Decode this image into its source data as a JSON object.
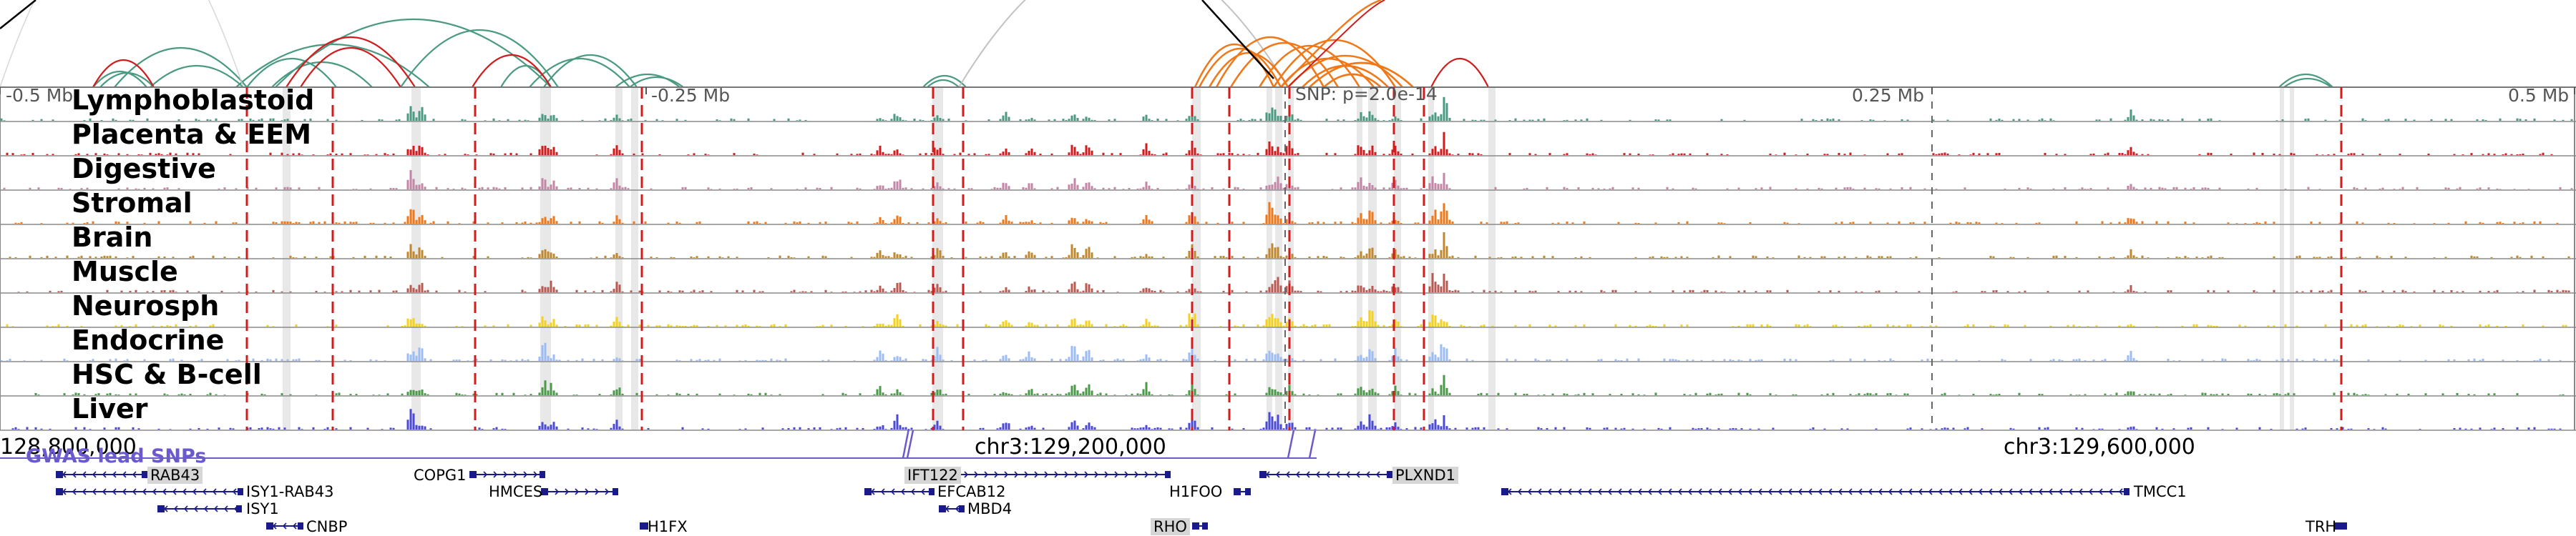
{
  "ruler": {
    "left_label": "-0.5 Mb",
    "mid_left_label": "-0.25 Mb",
    "snp_label": "SNP: p=2.0e-14",
    "mid_right_label": "0.25 Mb",
    "right_label": "0.5 Mb"
  },
  "tracks": [
    {
      "label": "Lymphoblastoid",
      "color": "#4a9a82"
    },
    {
      "label": "Placenta & EEM",
      "color": "#d01c1c"
    },
    {
      "label": "Digestive",
      "color": "#c486a6"
    },
    {
      "label": "Stromal",
      "color": "#f07818"
    },
    {
      "label": "Brain",
      "color": "#c0882e"
    },
    {
      "label": "Muscle",
      "color": "#b85a52"
    },
    {
      "label": "Neurosph",
      "color": "#f4d21c"
    },
    {
      "label": "Endocrine",
      "color": "#9cbcf4"
    },
    {
      "label": "HSC & B-cell",
      "color": "#4a9a48"
    },
    {
      "label": "Liver",
      "color": "#4a4ad6"
    }
  ],
  "gwas": {
    "label": "GWAS lead SNPs",
    "color": "#6a5acd"
  },
  "coordinates": {
    "left": "128,800,000",
    "center": "chr3:129,200,000",
    "right": "chr3:129,600,000"
  },
  "genes": [
    {
      "name": "RAB43",
      "highlight": true
    },
    {
      "name": "ISY1-RAB43",
      "highlight": false
    },
    {
      "name": "ISY1",
      "highlight": false
    },
    {
      "name": "CNBP",
      "highlight": false
    },
    {
      "name": "COPG1",
      "highlight": false
    },
    {
      "name": "HMCES",
      "highlight": false
    },
    {
      "name": "H1FX",
      "highlight": false
    },
    {
      "name": "IFT122",
      "highlight": true
    },
    {
      "name": "EFCAB12",
      "highlight": false
    },
    {
      "name": "MBD4",
      "highlight": false
    },
    {
      "name": "H1FOO",
      "highlight": false
    },
    {
      "name": "RHO",
      "highlight": true
    },
    {
      "name": "PLXND1",
      "highlight": true
    },
    {
      "name": "TMCC1",
      "highlight": false
    },
    {
      "name": "TRH",
      "highlight": false
    }
  ],
  "colors": {
    "arc_green": "#4a9a82",
    "arc_red": "#d01c1c",
    "arc_orange": "#f07818",
    "arc_gray": "#bbbbbb",
    "arc_black": "#000000",
    "snp_marker": "#d01c1c",
    "gene_color": "#1a1a8c",
    "highlight_band": "#e4e4e4"
  }
}
